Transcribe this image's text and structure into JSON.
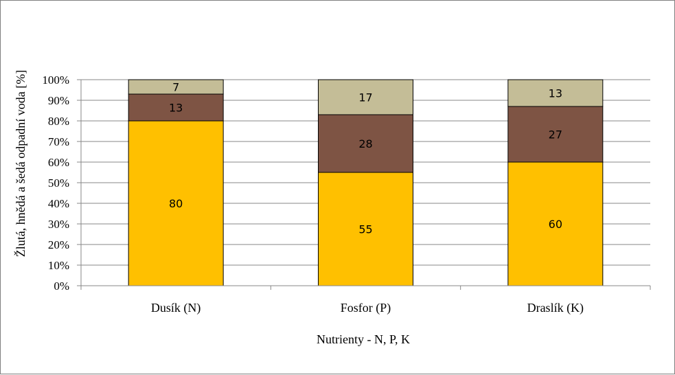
{
  "chart_data": {
    "type": "bar",
    "stacked": true,
    "percent": true,
    "categories": [
      "Dusík (N)",
      "Fosfor (P)",
      "Draslík (K)"
    ],
    "series": [
      {
        "values": [
          80,
          55,
          60
        ],
        "color": "#FFC000"
      },
      {
        "values": [
          13,
          28,
          27
        ],
        "color": "#7E5444"
      },
      {
        "values": [
          7,
          17,
          13
        ],
        "color": "#C4BD97"
      }
    ],
    "xlabel": "Nutrienty - N, P, K",
    "ylabel": "Žlutá, hnědá a šedá odpadní voda [%]",
    "ylim": [
      0,
      100
    ],
    "yticks": [
      "0%",
      "10%",
      "20%",
      "30%",
      "40%",
      "50%",
      "60%",
      "70%",
      "80%",
      "90%",
      "100%"
    ],
    "grid": true,
    "legend": false,
    "data_labels": true
  }
}
